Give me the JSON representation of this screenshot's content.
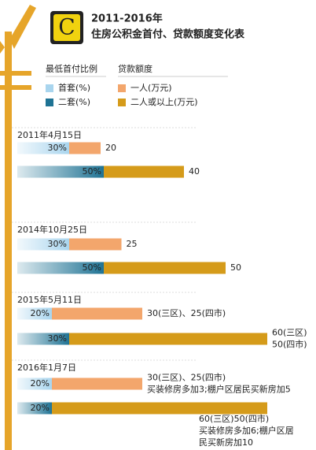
{
  "header": {
    "logo": "C",
    "title_line1": "2011-2016年",
    "title_line2": "住房公积金首付、贷款额度变化表"
  },
  "legend": {
    "left_title": "最低首付比例",
    "right_title": "贷款额度",
    "items": [
      {
        "label": "首套(%)",
        "color": "#a9d5ee"
      },
      {
        "label": "二套(%)",
        "color": "#1f7394"
      },
      {
        "label": "一人(万元)",
        "color": "#f3a66c"
      },
      {
        "label": "二人或以上(万元)",
        "color": "#d59b1a"
      }
    ]
  },
  "periods": [
    {
      "date": "2011年4月15日",
      "rows": [
        {
          "down_payment": 30,
          "down_payment_label": "30%",
          "loan": 20,
          "loan_label": [
            "20"
          ]
        },
        {
          "down_payment": 50,
          "down_payment_label": "50%",
          "loan": 40,
          "loan_label": [
            "40"
          ]
        }
      ]
    },
    {
      "date": "2014年10月25日",
      "rows": [
        {
          "down_payment": 30,
          "down_payment_label": "30%",
          "loan": 25,
          "loan_label": [
            "25"
          ]
        },
        {
          "down_payment": 50,
          "down_payment_label": "50%",
          "loan": 50,
          "loan_label": [
            "50"
          ]
        }
      ]
    },
    {
      "date": "2015年5月11日",
      "rows": [
        {
          "down_payment": 20,
          "down_payment_label": "20%",
          "loan": 30,
          "loan_label": [
            "30(三区)、25(四市)"
          ]
        },
        {
          "down_payment": 30,
          "down_payment_label": "30%",
          "loan": 60,
          "loan_label": [
            "60(三区)",
            "50(四市)"
          ]
        }
      ]
    },
    {
      "date": "2016年1月7日",
      "rows": [
        {
          "down_payment": 20,
          "down_payment_label": "20%",
          "loan": 30,
          "loan_label": [
            "30(三区)、25(四市)",
            "买装修房多加3;棚户区居民买新房加5"
          ]
        },
        {
          "down_payment": 20,
          "down_payment_label": "20%",
          "loan": 60,
          "loan_label": [
            "60(三区)50(四市)",
            "买装修房多加6;棚户区居",
            "民买新房加10"
          ]
        }
      ]
    }
  ]
}
